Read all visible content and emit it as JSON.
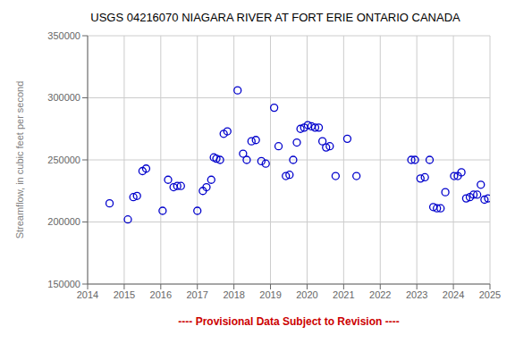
{
  "chart_data": {
    "type": "scatter",
    "title": "USGS 04216070 NIAGARA RIVER AT FORT ERIE ONTARIO CANADA",
    "y_label": "Streamflow, in cubic feet per second",
    "x_label": "---- Provisional Data Subject to Revision ----",
    "x": [
      2014.6,
      2015.1,
      2015.25,
      2015.35,
      2015.5,
      2015.6,
      2016.05,
      2016.2,
      2016.35,
      2016.45,
      2016.55,
      2017.0,
      2017.15,
      2017.25,
      2017.38,
      2017.45,
      2017.52,
      2017.62,
      2017.72,
      2017.82,
      2018.1,
      2018.25,
      2018.35,
      2018.48,
      2018.6,
      2018.75,
      2018.87,
      2019.1,
      2019.22,
      2019.42,
      2019.52,
      2019.62,
      2019.72,
      2019.82,
      2019.92,
      2020.02,
      2020.12,
      2020.22,
      2020.32,
      2020.42,
      2020.52,
      2020.62,
      2020.78,
      2021.1,
      2021.35,
      2022.85,
      2022.95,
      2023.1,
      2023.22,
      2023.35,
      2023.45,
      2023.55,
      2023.65,
      2023.78,
      2024.02,
      2024.12,
      2024.22,
      2024.35,
      2024.45,
      2024.55,
      2024.65,
      2024.75,
      2024.85,
      2024.95
    ],
    "values": [
      215000,
      202000,
      220000,
      221000,
      241000,
      243000,
      209000,
      234000,
      228000,
      229000,
      229000,
      209000,
      225000,
      228000,
      234000,
      252000,
      251000,
      250000,
      271000,
      273000,
      306000,
      255000,
      250000,
      265000,
      266000,
      249000,
      247000,
      292000,
      261000,
      237000,
      238000,
      250000,
      264000,
      275000,
      276000,
      278000,
      277000,
      276000,
      276000,
      265000,
      260000,
      261000,
      237000,
      267000,
      237000,
      250000,
      250000,
      235000,
      236000,
      250000,
      212000,
      211000,
      211000,
      224000,
      237000,
      237000,
      240000,
      219000,
      220000,
      222000,
      222000,
      230000,
      218000,
      219000
    ],
    "color": "#0000CC",
    "marker": "circle",
    "xlim": [
      2014,
      2025
    ],
    "ylim": [
      150000,
      350000
    ],
    "xticks": [
      2014,
      2015,
      2016,
      2017,
      2018,
      2019,
      2020,
      2021,
      2022,
      2023,
      2024,
      2025
    ],
    "yticks": [
      150000,
      200000,
      250000,
      300000,
      350000
    ],
    "grid": true
  }
}
